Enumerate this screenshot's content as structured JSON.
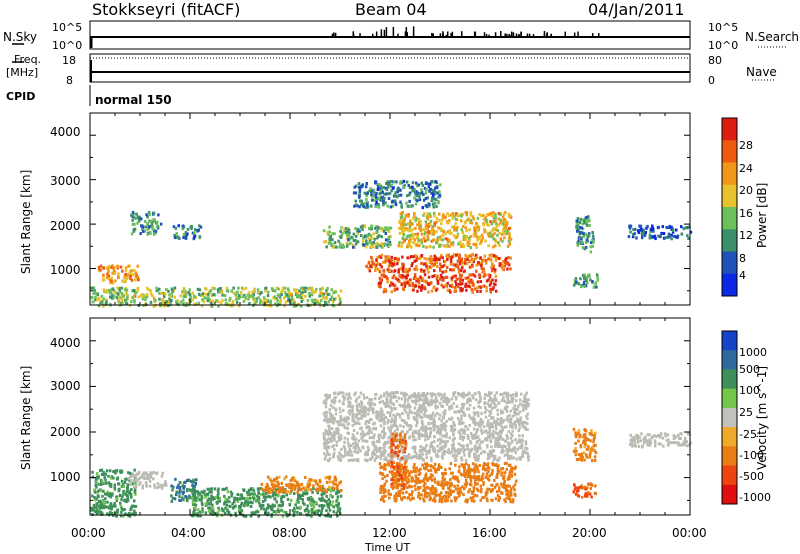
{
  "header": {
    "station": "Stokkseyri (fitACF)",
    "beam": "Beam 04",
    "date": "04/Jan/2011"
  },
  "strip_labels": {
    "nsky": "N.Sky",
    "nsky_ticks": [
      "10^5",
      "10^0"
    ],
    "nsearch": "N.Search",
    "nsearch_ticks": [
      "10^5",
      "10^0"
    ],
    "freq": "Freq.",
    "freq_unit": "[MHz]",
    "freq_ticks": [
      "18",
      "8"
    ],
    "nave": "Nave",
    "nave_ticks": [
      "80",
      "0"
    ],
    "cpid": "CPID",
    "cpid_value": "normal 150"
  },
  "colors": {
    "power_scale": [
      "#0a28e6",
      "#1f53b8",
      "#3c8f6a",
      "#6cc05c",
      "#e8c22a",
      "#f2961a",
      "#ee5a10",
      "#dd1c12"
    ],
    "velocity_scale": [
      "#1444c8",
      "#2c6aa0",
      "#3e8f5a",
      "#73c84a",
      "#c2c2bc",
      "#f0aa2a",
      "#ea7c14",
      "#ee4410",
      "#e00e0e"
    ],
    "ground_scatter": "#bbbbb4"
  },
  "chart_data": [
    {
      "type": "heatmap",
      "title": "Power",
      "xlabel": "Time UT",
      "ylabel": "Slant Range [km]",
      "xlim": [
        "00:00",
        "24:00"
      ],
      "ylim": [
        180,
        4500
      ],
      "x_tick_labels": [
        "00:00",
        "04:00",
        "08:00",
        "12:00",
        "16:00",
        "20:00",
        "00:00"
      ],
      "y_tick_labels": [
        "1000",
        "2000",
        "3000",
        "4000"
      ],
      "colorbar": {
        "label": "Power [dB]",
        "ticks": [
          "4",
          "8",
          "12",
          "16",
          "20",
          "24",
          "28"
        ],
        "range": [
          0,
          30
        ]
      },
      "echo_regions": [
        {
          "start_h": 0.3,
          "end_h": 1.9,
          "range_min_km": 700,
          "range_max_km": 1100,
          "value": 20
        },
        {
          "start_h": 0.0,
          "end_h": 10.0,
          "range_min_km": 180,
          "range_max_km": 600,
          "value": 14
        },
        {
          "start_h": 1.6,
          "end_h": 2.8,
          "range_min_km": 1800,
          "range_max_km": 2300,
          "value": 10
        },
        {
          "start_h": 3.3,
          "end_h": 4.4,
          "range_min_km": 1700,
          "range_max_km": 2000,
          "value": 8
        },
        {
          "start_h": 9.3,
          "end_h": 12.0,
          "range_min_km": 1500,
          "range_max_km": 2000,
          "value": 12
        },
        {
          "start_h": 11.0,
          "end_h": 16.8,
          "range_min_km": 950,
          "range_max_km": 1350,
          "value": 24
        },
        {
          "start_h": 11.5,
          "end_h": 16.2,
          "range_min_km": 500,
          "range_max_km": 900,
          "value": 26
        },
        {
          "start_h": 12.3,
          "end_h": 16.8,
          "range_min_km": 1500,
          "range_max_km": 2300,
          "value": 18
        },
        {
          "start_h": 10.5,
          "end_h": 14.0,
          "range_min_km": 2400,
          "range_max_km": 3000,
          "value": 8
        },
        {
          "start_h": 19.4,
          "end_h": 20.1,
          "range_min_km": 1400,
          "range_max_km": 2200,
          "value": 10
        },
        {
          "start_h": 21.5,
          "end_h": 24.0,
          "range_min_km": 1700,
          "range_max_km": 2000,
          "value": 6
        },
        {
          "start_h": 19.3,
          "end_h": 20.3,
          "range_min_km": 600,
          "range_max_km": 900,
          "value": 10
        }
      ]
    },
    {
      "type": "heatmap",
      "title": "Velocity",
      "xlabel": "Time UT",
      "ylabel": "Slant Range [km]",
      "xlim": [
        "00:00",
        "24:00"
      ],
      "ylim": [
        180,
        4500
      ],
      "x_tick_labels": [
        "00:00",
        "04:00",
        "08:00",
        "12:00",
        "16:00",
        "20:00",
        "00:00"
      ],
      "y_tick_labels": [
        "1000",
        "2000",
        "3000",
        "4000"
      ],
      "colorbar": {
        "label": "Velocity [m s^-1]",
        "ticks": [
          "1000",
          "500",
          "100",
          "25",
          "-25",
          "-100",
          "-500",
          "-1000"
        ]
      },
      "echo_regions": [
        {
          "start_h": 0.0,
          "end_h": 1.8,
          "range_min_km": 180,
          "range_max_km": 1200,
          "value": 100
        },
        {
          "start_h": 1.5,
          "end_h": 3.0,
          "range_min_km": 800,
          "range_max_km": 1150,
          "value": 0
        },
        {
          "start_h": 3.2,
          "end_h": 4.2,
          "range_min_km": 500,
          "range_max_km": 1000,
          "value": 300
        },
        {
          "start_h": 4.0,
          "end_h": 10.0,
          "range_min_km": 180,
          "range_max_km": 800,
          "value": 100
        },
        {
          "start_h": 6.8,
          "end_h": 10.0,
          "range_min_km": 700,
          "range_max_km": 1050,
          "value": -100
        },
        {
          "start_h": 9.3,
          "end_h": 17.5,
          "range_min_km": 1400,
          "range_max_km": 2900,
          "value": 0
        },
        {
          "start_h": 11.5,
          "end_h": 17.0,
          "range_min_km": 500,
          "range_max_km": 1350,
          "value": -150
        },
        {
          "start_h": 12.0,
          "end_h": 12.6,
          "range_min_km": 800,
          "range_max_km": 2000,
          "value": -300
        },
        {
          "start_h": 19.3,
          "end_h": 20.2,
          "range_min_km": 1400,
          "range_max_km": 2100,
          "value": -100
        },
        {
          "start_h": 19.3,
          "end_h": 20.3,
          "range_min_km": 600,
          "range_max_km": 900,
          "value": -300
        },
        {
          "start_h": 21.5,
          "end_h": 24.0,
          "range_min_km": 1700,
          "range_max_km": 2000,
          "value": 0
        }
      ]
    }
  ]
}
